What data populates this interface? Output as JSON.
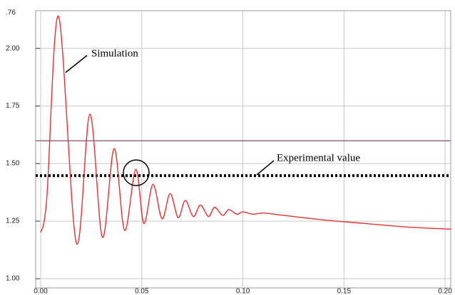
{
  "chart_data": {
    "type": "line",
    "y_top_label": ".76",
    "x": [
      0,
      0.003,
      0.0088,
      0.0176,
      0.0243,
      0.0305,
      0.0363,
      0.0415,
      0.047,
      0.051,
      0.0555,
      0.06,
      0.064,
      0.068,
      0.0715,
      0.0755,
      0.079,
      0.083,
      0.086,
      0.09,
      0.093,
      0.097,
      0.1,
      0.105,
      0.11,
      0.12,
      0.14,
      0.16,
      0.18,
      0.203
    ],
    "series": [
      {
        "name": "Simulation",
        "color": "#e8322f",
        "values": [
          1.2,
          1.35,
          2.14,
          1.155,
          1.715,
          1.18,
          1.565,
          1.21,
          1.475,
          1.24,
          1.41,
          1.26,
          1.37,
          1.265,
          1.34,
          1.27,
          1.32,
          1.27,
          1.31,
          1.275,
          1.3,
          1.28,
          1.29,
          1.28,
          1.285,
          1.275,
          1.255,
          1.24,
          1.225,
          1.215
        ]
      }
    ],
    "reference_lines": [
      {
        "name": "Experimental value",
        "value": 1.4475,
        "color": "#000000",
        "style": "dotted"
      },
      {
        "value": 1.599,
        "color": "#8b4a6b",
        "style": "solid"
      }
    ],
    "xlim": [
      -0.0025,
      0.2028
    ],
    "ylim": [
      0.96,
      2.164
    ],
    "xticks": [
      {
        "value": 0,
        "label": "0.00"
      },
      0.05,
      {
        "value": 0.1,
        "label": "0.10"
      },
      0.15,
      {
        "value": 0.2,
        "label": "0.20"
      }
    ],
    "yticks": [
      {
        "value": 1,
        "label": "1.00"
      },
      1.25,
      {
        "value": 1.5,
        "label": "1.50"
      },
      1.75,
      {
        "value": 2,
        "label": "2.00"
      }
    ],
    "grid": true
  }
}
